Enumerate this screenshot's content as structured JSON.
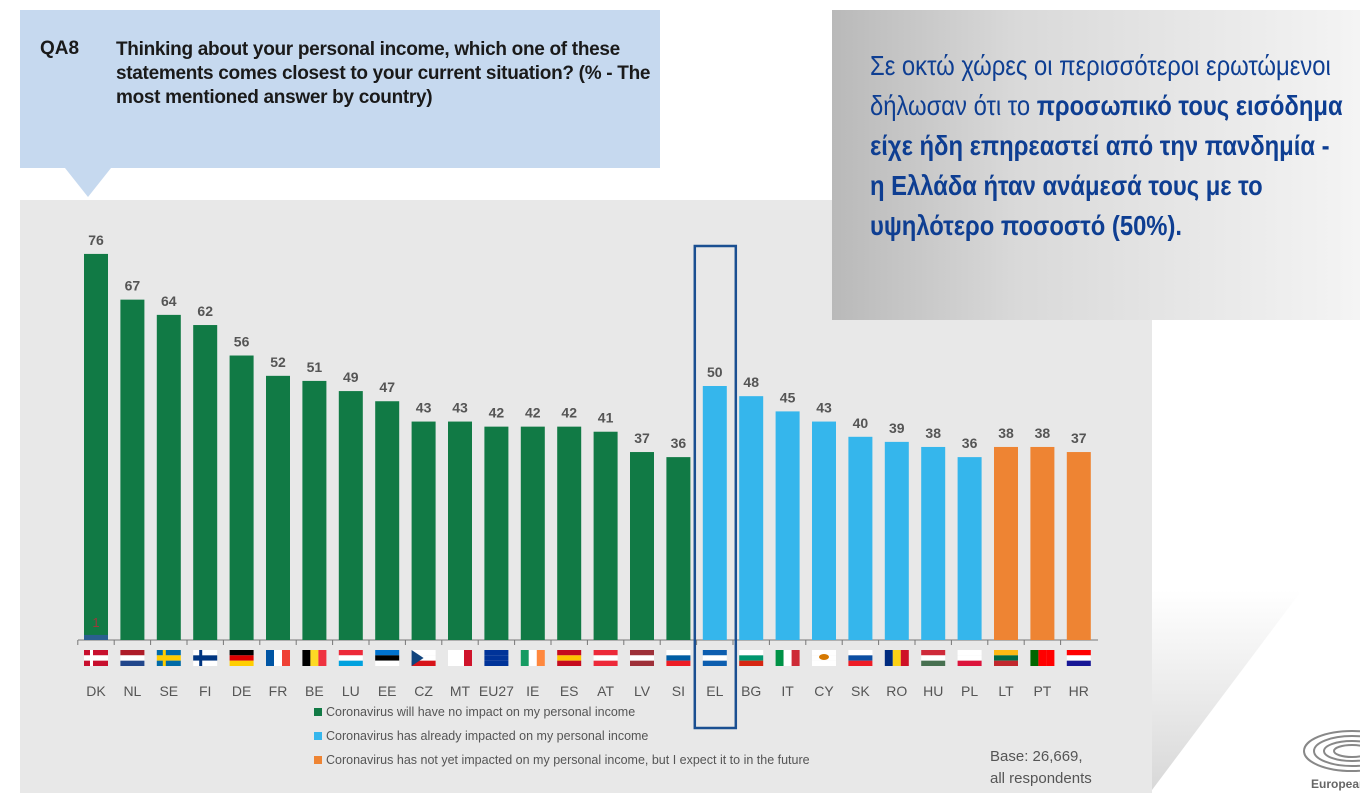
{
  "question": {
    "code": "QA8",
    "text": "Thinking about your personal income, which one of these statements comes closest to your current situation? (% - The most mentioned answer by country)"
  },
  "callout": {
    "line_plain": "Σε οκτώ χώρες οι περισσότεροι ερωτώμενοι δήλωσαν ότι το",
    "line_bold": "προσωπικό τους εισόδημα είχε ήδη επηρεαστεί από την πανδημία - η Ελλάδα ήταν ανάμεσά τους με το υψηλότερο ποσοστό (50%)."
  },
  "base_note": {
    "line1": "Base: 26,669,",
    "line2": "all respondents"
  },
  "logo": {
    "text": "European"
  },
  "chart_data": {
    "type": "bar",
    "ylim": [
      0,
      80
    ],
    "grid": false,
    "highlight": "EL",
    "categories": [
      "DK",
      "NL",
      "SE",
      "FI",
      "DE",
      "FR",
      "BE",
      "LU",
      "EE",
      "CZ",
      "MT",
      "EU27",
      "IE",
      "ES",
      "AT",
      "LV",
      "SI",
      "EL",
      "BG",
      "IT",
      "CY",
      "SK",
      "RO",
      "HU",
      "PL",
      "LT",
      "PT",
      "HR"
    ],
    "values": [
      76,
      67,
      64,
      62,
      56,
      52,
      51,
      49,
      47,
      43,
      43,
      42,
      42,
      42,
      41,
      37,
      36,
      50,
      48,
      45,
      43,
      40,
      39,
      38,
      36,
      38,
      38,
      37
    ],
    "answer": [
      "no_impact",
      "no_impact",
      "no_impact",
      "no_impact",
      "no_impact",
      "no_impact",
      "no_impact",
      "no_impact",
      "no_impact",
      "no_impact",
      "no_impact",
      "no_impact",
      "no_impact",
      "no_impact",
      "no_impact",
      "no_impact",
      "no_impact",
      "already",
      "already",
      "already",
      "already",
      "already",
      "already",
      "already",
      "already",
      "expect",
      "expect",
      "expect"
    ],
    "extra_segments": [
      {
        "category": "DK",
        "series": "already",
        "value": 1
      }
    ],
    "series": [
      {
        "key": "no_impact",
        "name": "Coronavirus will have no impact on my personal income",
        "color": "#117a45"
      },
      {
        "key": "already",
        "name": "Coronavirus has already impacted on my personal income",
        "color": "#35b6ec"
      },
      {
        "key": "expect",
        "name": "Coronavirus has not yet impacted on my personal income, but I expect it to in the future",
        "color": "#ee8433"
      }
    ],
    "legend_placement": "bottom",
    "highlight_color": "#1a4f91"
  }
}
